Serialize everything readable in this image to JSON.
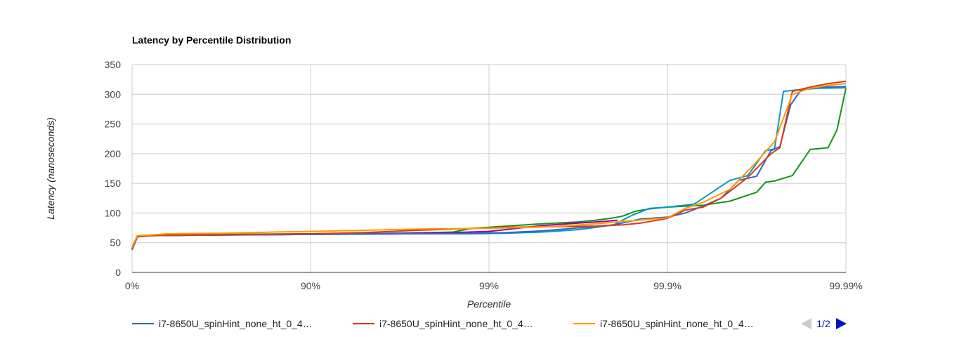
{
  "chart_data": {
    "type": "line",
    "title": "Latency by Percentile Distribution",
    "xlabel": "Percentile",
    "ylabel": "Latency (nanoseconds)",
    "x_scale": "log of 1/(1-percentile)",
    "ylim": [
      0,
      350
    ],
    "y_ticks": [
      "0",
      "50",
      "100",
      "150",
      "200",
      "250",
      "300",
      "350"
    ],
    "x_ticks": [
      "0%",
      "90%",
      "99%",
      "99.9%",
      "99.99%"
    ],
    "grid": true,
    "legend_position": "bottom",
    "legend_pager": "1/2",
    "series": [
      {
        "name": "i7-8650U_spinHint_none_ht_0_4…",
        "color": "#3366cc",
        "points": [
          [
            0.0,
            38
          ],
          [
            0.03,
            60
          ],
          [
            0.1,
            62
          ],
          [
            0.4,
            63
          ],
          [
            1.0,
            64
          ],
          [
            1.6,
            65
          ],
          [
            1.9,
            66
          ],
          [
            2.1,
            67
          ],
          [
            2.3,
            70
          ],
          [
            2.5,
            75
          ],
          [
            2.7,
            80
          ],
          [
            2.85,
            90
          ],
          [
            3.0,
            93
          ],
          [
            3.1,
            100
          ],
          [
            3.2,
            112
          ],
          [
            3.3,
            125
          ],
          [
            3.4,
            155
          ],
          [
            3.5,
            162
          ],
          [
            3.58,
            205
          ],
          [
            3.63,
            212
          ],
          [
            3.69,
            282
          ],
          [
            3.75,
            308
          ],
          [
            3.85,
            312
          ],
          [
            4.0,
            313
          ]
        ]
      },
      {
        "name": "i7-8650U_spinHint_none_ht_0_4…",
        "color": "#dc3912",
        "points": [
          [
            0.0,
            40
          ],
          [
            0.03,
            60
          ],
          [
            0.1,
            62
          ],
          [
            0.4,
            63
          ],
          [
            1.0,
            65
          ],
          [
            1.3,
            67
          ],
          [
            1.6,
            71
          ],
          [
            1.9,
            74
          ],
          [
            2.1,
            76
          ],
          [
            2.35,
            77
          ],
          [
            2.6,
            78
          ],
          [
            2.75,
            80
          ],
          [
            2.85,
            83
          ],
          [
            3.0,
            91
          ],
          [
            3.1,
            105
          ],
          [
            3.2,
            110
          ],
          [
            3.3,
            125
          ],
          [
            3.45,
            160
          ],
          [
            3.58,
            200
          ],
          [
            3.63,
            210
          ],
          [
            3.7,
            305
          ],
          [
            3.8,
            312
          ],
          [
            3.9,
            318
          ],
          [
            4.0,
            322
          ]
        ]
      },
      {
        "name": "i7-8650U_spinHint_none_ht_0_4…",
        "color": "#ff9900",
        "points": [
          [
            0.0,
            42
          ],
          [
            0.03,
            62
          ],
          [
            0.1,
            63
          ],
          [
            0.2,
            65
          ],
          [
            0.5,
            66
          ],
          [
            0.8,
            68
          ],
          [
            1.0,
            69
          ],
          [
            1.3,
            71
          ],
          [
            1.6,
            73
          ],
          [
            1.9,
            74
          ],
          [
            2.1,
            75
          ],
          [
            2.35,
            77
          ],
          [
            2.6,
            82
          ],
          [
            2.8,
            87
          ],
          [
            3.0,
            92
          ],
          [
            3.1,
            108
          ],
          [
            3.2,
            118
          ],
          [
            3.35,
            140
          ],
          [
            3.48,
            180
          ],
          [
            3.6,
            220
          ],
          [
            3.7,
            300
          ],
          [
            3.8,
            310
          ],
          [
            3.9,
            315
          ],
          [
            4.0,
            318
          ]
        ]
      },
      {
        "name": "",
        "color": "#109618",
        "points": [
          [
            0.0,
            42
          ],
          [
            0.03,
            62
          ],
          [
            0.1,
            63
          ],
          [
            0.5,
            64
          ],
          [
            1.0,
            65
          ],
          [
            1.5,
            66
          ],
          [
            1.8,
            68
          ],
          [
            1.9,
            74
          ],
          [
            2.1,
            78
          ],
          [
            2.3,
            82
          ],
          [
            2.5,
            85
          ],
          [
            2.6,
            88
          ],
          [
            2.7,
            92
          ],
          [
            2.75,
            95
          ],
          [
            2.82,
            103
          ],
          [
            2.9,
            107
          ],
          [
            3.0,
            110
          ],
          [
            3.2,
            113
          ],
          [
            3.35,
            120
          ],
          [
            3.5,
            135
          ],
          [
            3.55,
            152
          ],
          [
            3.6,
            154
          ],
          [
            3.7,
            163
          ],
          [
            3.75,
            185
          ],
          [
            3.8,
            207
          ],
          [
            3.9,
            210
          ],
          [
            3.95,
            240
          ],
          [
            4.0,
            310
          ]
        ]
      },
      {
        "name": "",
        "color": "#990099",
        "points": [
          [
            0.0,
            40
          ],
          [
            0.03,
            60
          ],
          [
            0.1,
            62
          ],
          [
            0.5,
            63
          ],
          [
            1.0,
            64
          ],
          [
            1.5,
            66
          ],
          [
            1.8,
            67
          ],
          [
            2.0,
            69
          ],
          [
            2.15,
            74
          ],
          [
            2.3,
            79
          ],
          [
            2.5,
            83
          ],
          [
            2.65,
            86
          ],
          [
            2.72,
            88
          ]
        ]
      },
      {
        "name": "",
        "color": "#0099c6",
        "points": [
          [
            0.0,
            42
          ],
          [
            0.03,
            62
          ],
          [
            0.1,
            62
          ],
          [
            0.5,
            63
          ],
          [
            1.0,
            64
          ],
          [
            1.5,
            65
          ],
          [
            1.9,
            65
          ],
          [
            2.1,
            66
          ],
          [
            2.3,
            68
          ],
          [
            2.5,
            72
          ],
          [
            2.6,
            76
          ],
          [
            2.7,
            80
          ],
          [
            2.8,
            96
          ],
          [
            2.9,
            108
          ],
          [
            3.0,
            110
          ],
          [
            3.15,
            115
          ],
          [
            3.25,
            135
          ],
          [
            3.35,
            155
          ],
          [
            3.45,
            163
          ],
          [
            3.55,
            205
          ],
          [
            3.6,
            208
          ],
          [
            3.65,
            305
          ],
          [
            3.75,
            308
          ],
          [
            3.85,
            310
          ],
          [
            4.0,
            311
          ]
        ]
      }
    ]
  },
  "legend": {
    "items": [
      {
        "label": "i7-8650U_spinHint_none_ht_0_4…",
        "color": "#3366cc"
      },
      {
        "label": "i7-8650U_spinHint_none_ht_0_4…",
        "color": "#dc3912"
      },
      {
        "label": "i7-8650U_spinHint_none_ht_0_4…",
        "color": "#ff9900"
      }
    ],
    "pager": "1/2"
  }
}
